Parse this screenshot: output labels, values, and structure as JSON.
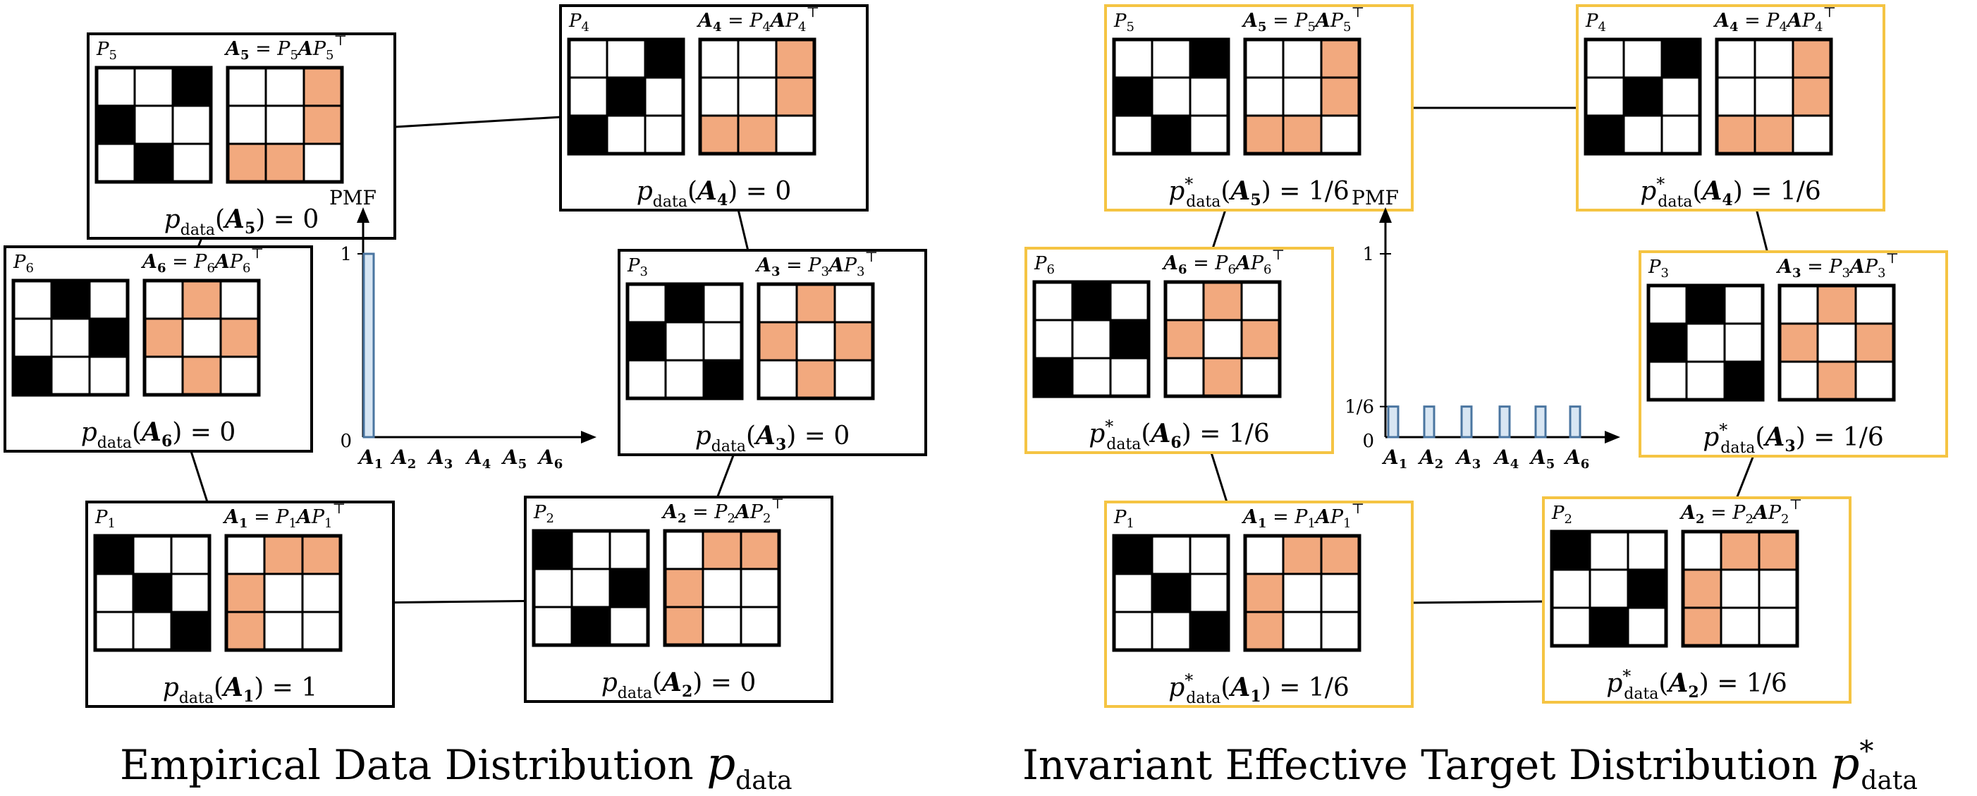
{
  "colors": {
    "frame_left": "#000000",
    "frame_right": "#F5C443",
    "adjacency_fill": "#F2A97E",
    "permutation_fill": "#000000",
    "pmf_bar_stroke": "#4A75A0",
    "pmf_bar_fill": "#D8E6F3"
  },
  "panels": [
    {
      "id": "left",
      "caption_main": "Empirical Data Distribution ",
      "caption_symbol": "p",
      "caption_sub": "data",
      "caption_sup": "",
      "prob_func": "p",
      "prob_sup": "",
      "prob_sub": "data",
      "frame": "black",
      "pmf": {
        "ylabel": "PMF",
        "yticks": [
          "1",
          "0"
        ],
        "categories": [
          "A1",
          "A2",
          "A3",
          "A4",
          "A5",
          "A6"
        ],
        "values": [
          1,
          0,
          0,
          0,
          0,
          0
        ]
      }
    },
    {
      "id": "right",
      "caption_main": "Invariant Effective Target Distribution ",
      "caption_symbol": "p",
      "caption_sub": "data",
      "caption_sup": "*",
      "prob_func": "p",
      "prob_sup": "*",
      "prob_sub": "data",
      "frame": "yellow",
      "pmf": {
        "ylabel": "PMF",
        "yticks": [
          "1",
          "1/6",
          "0"
        ],
        "categories": [
          "A1",
          "A2",
          "A3",
          "A4",
          "A5",
          "A6"
        ],
        "values": [
          0.1667,
          0.1667,
          0.1667,
          0.1667,
          0.1667,
          0.1667
        ]
      }
    }
  ],
  "permutations": [
    {
      "k": 1,
      "p_label": "P1",
      "perm": [
        [
          1,
          0,
          0
        ],
        [
          0,
          1,
          0
        ],
        [
          0,
          0,
          1
        ]
      ],
      "adj": [
        [
          0,
          1,
          1
        ],
        [
          1,
          0,
          0
        ],
        [
          1,
          0,
          0
        ]
      ],
      "left_value": "1",
      "right_value": "1/6"
    },
    {
      "k": 2,
      "p_label": "P2",
      "perm": [
        [
          1,
          0,
          0
        ],
        [
          0,
          0,
          1
        ],
        [
          0,
          1,
          0
        ]
      ],
      "adj": [
        [
          0,
          1,
          1
        ],
        [
          1,
          0,
          0
        ],
        [
          1,
          0,
          0
        ]
      ],
      "left_value": "0",
      "right_value": "1/6"
    },
    {
      "k": 3,
      "p_label": "P3",
      "perm": [
        [
          0,
          1,
          0
        ],
        [
          1,
          0,
          0
        ],
        [
          0,
          0,
          1
        ]
      ],
      "adj": [
        [
          0,
          1,
          0
        ],
        [
          1,
          0,
          1
        ],
        [
          0,
          1,
          0
        ]
      ],
      "left_value": "0",
      "right_value": "1/6"
    },
    {
      "k": 4,
      "p_label": "P4",
      "perm": [
        [
          0,
          0,
          1
        ],
        [
          0,
          1,
          0
        ],
        [
          1,
          0,
          0
        ]
      ],
      "adj": [
        [
          0,
          0,
          1
        ],
        [
          0,
          0,
          1
        ],
        [
          1,
          1,
          0
        ]
      ],
      "left_value": "0",
      "right_value": "1/6"
    },
    {
      "k": 5,
      "p_label": "P5",
      "perm": [
        [
          0,
          0,
          1
        ],
        [
          1,
          0,
          0
        ],
        [
          0,
          1,
          0
        ]
      ],
      "adj": [
        [
          0,
          0,
          1
        ],
        [
          0,
          0,
          1
        ],
        [
          1,
          1,
          0
        ]
      ],
      "left_value": "0",
      "right_value": "1/6"
    },
    {
      "k": 6,
      "p_label": "P6",
      "perm": [
        [
          0,
          1,
          0
        ],
        [
          0,
          0,
          1
        ],
        [
          1,
          0,
          0
        ]
      ],
      "adj": [
        [
          0,
          1,
          0
        ],
        [
          1,
          0,
          1
        ],
        [
          0,
          1,
          0
        ]
      ],
      "left_value": "0",
      "right_value": "1/6"
    }
  ]
}
